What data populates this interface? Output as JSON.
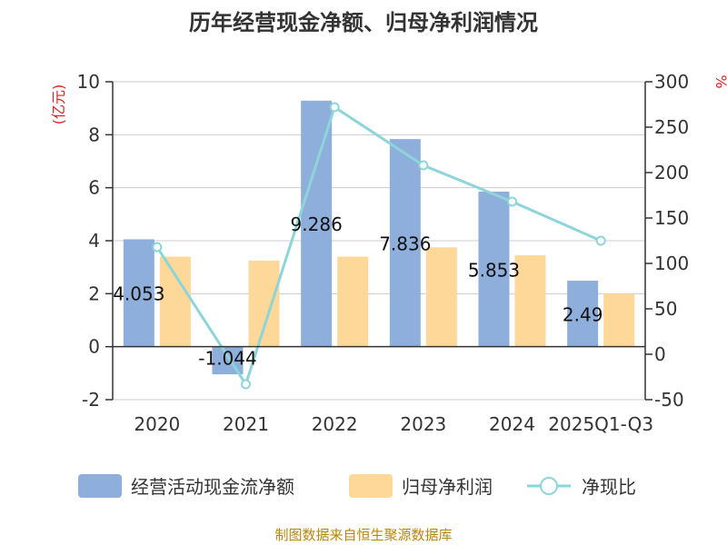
{
  "colors": {
    "cashflow": "#8eaedb",
    "profit": "#fdd899",
    "ratio": "#8dd5d9",
    "left_unit": "#e02020",
    "right_unit": "#e02020",
    "source": "#b8860b"
  },
  "chart_data": {
    "type": "bar",
    "title": "历年经营现金净额、归母净利润情况",
    "left_unit": "(亿元)",
    "right_unit": "%",
    "categories": [
      "2020",
      "2021",
      "2022",
      "2023",
      "2024",
      "2025Q1-Q3"
    ],
    "series": [
      {
        "name": "经营活动现金流净额",
        "type": "bar",
        "axis": "left",
        "values": [
          4.053,
          -1.044,
          9.286,
          7.836,
          5.853,
          2.49
        ]
      },
      {
        "name": "归母净利润",
        "type": "bar",
        "axis": "left",
        "values": [
          3.4,
          3.25,
          3.4,
          3.75,
          3.45,
          2.0
        ]
      },
      {
        "name": "净现比",
        "type": "line",
        "axis": "right",
        "values": [
          118,
          -33,
          272,
          208,
          168,
          125
        ]
      }
    ],
    "data_labels": [
      "4.053",
      "-1.044",
      "9.286",
      "7.836",
      "5.853",
      "2.49"
    ],
    "left_axis": {
      "min": -2,
      "max": 10,
      "ticks": [
        "-2",
        "0",
        "2",
        "4",
        "6",
        "8",
        "10"
      ]
    },
    "right_axis": {
      "min": -50,
      "max": 300,
      "ticks": [
        "-50",
        "0",
        "50",
        "100",
        "150",
        "200",
        "250",
        "300"
      ]
    },
    "grid": true,
    "legend": "bottom"
  },
  "source": "制图数据来自恒生聚源数据库"
}
